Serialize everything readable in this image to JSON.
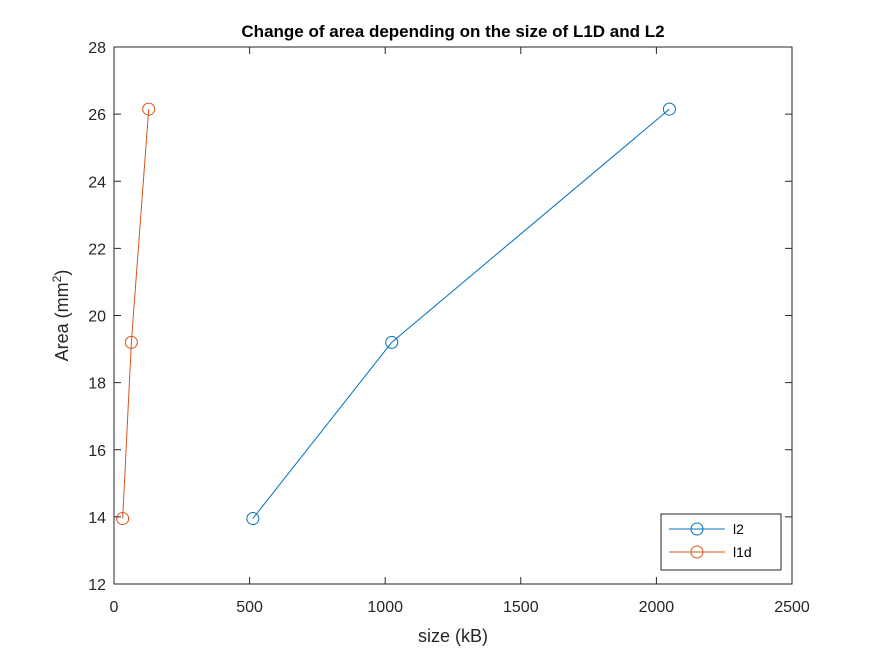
{
  "chart_data": {
    "type": "line",
    "title": "Change of area depending on the size of L1D and L2",
    "xlabel": "size (kB)",
    "ylabel": "Area (mm",
    "ylabel_superscript": "2",
    "ylabel_suffix": ")",
    "xlim": [
      0,
      2500
    ],
    "ylim": [
      12,
      28
    ],
    "xticks": [
      0,
      500,
      1000,
      1500,
      2000,
      2500
    ],
    "yticks": [
      12,
      14,
      16,
      18,
      20,
      22,
      24,
      26,
      28
    ],
    "grid": false,
    "legend_position": "bottom-right",
    "marker": "circle",
    "series": [
      {
        "name": "l2",
        "color": "#0072BD",
        "x": [
          512,
          1024,
          2048
        ],
        "y": [
          13.95,
          19.2,
          26.15
        ]
      },
      {
        "name": "l1d",
        "color": "#D95319",
        "x": [
          32,
          64,
          128
        ],
        "y": [
          13.95,
          19.2,
          26.15
        ]
      }
    ]
  }
}
